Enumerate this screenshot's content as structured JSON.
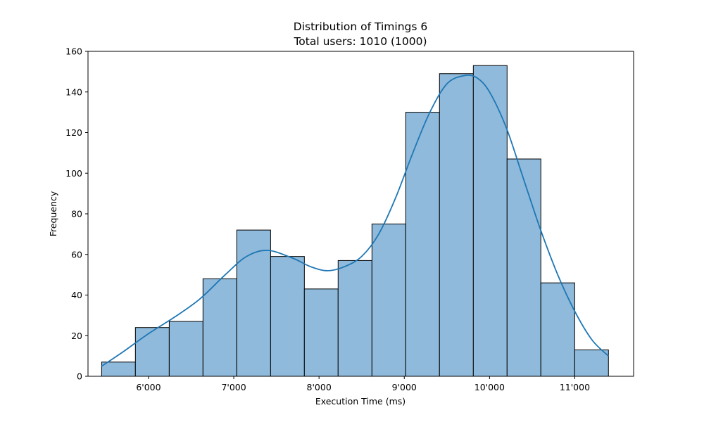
{
  "chart_data": {
    "type": "bar",
    "title": "Distribution of Timings 6",
    "subtitle": "Total users: 1010 (1000)",
    "xlabel": "Execution Time (ms)",
    "ylabel": "Frequency",
    "xlim": [
      5290,
      11690
    ],
    "ylim": [
      0,
      160
    ],
    "xticks": [
      6000,
      7000,
      8000,
      9000,
      10000,
      11000
    ],
    "xtick_labels": [
      "6'000",
      "7'000",
      "8'000",
      "9'000",
      "10'000",
      "11'000"
    ],
    "yticks": [
      0,
      20,
      40,
      60,
      80,
      100,
      120,
      140,
      160
    ],
    "ytick_labels": [
      "0",
      "20",
      "40",
      "60",
      "80",
      "100",
      "120",
      "140",
      "160"
    ],
    "bin_edges": [
      5450,
      5846,
      6243,
      6639,
      7035,
      7432,
      7828,
      8224,
      8621,
      9017,
      9413,
      9810,
      10206,
      10602,
      10999,
      11395
    ],
    "values": [
      7,
      24,
      27,
      48,
      72,
      59,
      43,
      57,
      75,
      130,
      149,
      153,
      107,
      46,
      13
    ],
    "kde": {
      "name": "kde",
      "x": [
        5450,
        5700,
        6000,
        6300,
        6600,
        6900,
        7150,
        7400,
        7700,
        7900,
        8100,
        8300,
        8500,
        8700,
        8900,
        9100,
        9300,
        9500,
        9700,
        9850,
        10000,
        10200,
        10400,
        10600,
        10800,
        11000,
        11200,
        11395
      ],
      "y": [
        5,
        12,
        21,
        29,
        38,
        50,
        59,
        62,
        58,
        54,
        52,
        54,
        59,
        70,
        88,
        110,
        130,
        144,
        148,
        147,
        140,
        122,
        97,
        72,
        50,
        32,
        18,
        10
      ]
    },
    "colors": {
      "bar_fill": "#8fbadb",
      "bar_edge": "#000000",
      "kde": "#1f77b4"
    },
    "grid": false,
    "legend": "none"
  }
}
